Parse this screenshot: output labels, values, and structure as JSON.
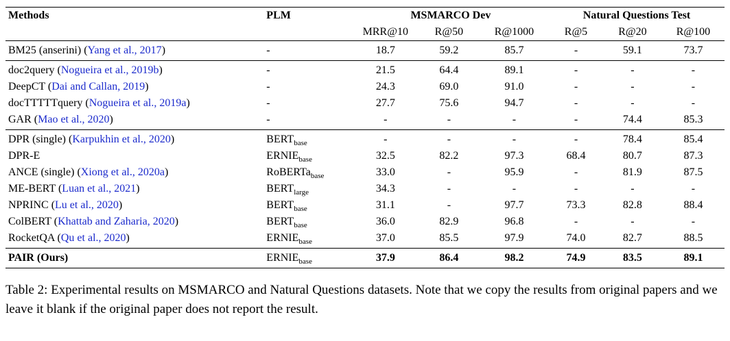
{
  "colors": {
    "citation_link": "#1b2acc",
    "text": "#000000",
    "background": "#ffffff"
  },
  "table": {
    "col_headers": {
      "methods": "Methods",
      "plm": "PLM",
      "group_msmarco": "MSMARCO Dev",
      "group_nq": "Natural Questions Test",
      "sub": [
        "MRR@10",
        "R@50",
        "R@1000",
        "R@5",
        "R@20",
        "R@100"
      ]
    },
    "groups": [
      {
        "rows": [
          {
            "method": "BM25 (anserini)",
            "cite": "Yang et al., 2017",
            "plm": {
              "name": "-",
              "sub": ""
            },
            "values": [
              "18.7",
              "59.2",
              "85.7",
              "-",
              "59.1",
              "73.7"
            ],
            "bold": false
          }
        ]
      },
      {
        "rows": [
          {
            "method": "doc2query",
            "cite": "Nogueira et al., 2019b",
            "plm": {
              "name": "-",
              "sub": ""
            },
            "values": [
              "21.5",
              "64.4",
              "89.1",
              "-",
              "-",
              "-"
            ],
            "bold": false
          },
          {
            "method": "DeepCT",
            "cite": "Dai and Callan, 2019",
            "plm": {
              "name": "-",
              "sub": ""
            },
            "values": [
              "24.3",
              "69.0",
              "91.0",
              "-",
              "-",
              "-"
            ],
            "bold": false
          },
          {
            "method": "docTTTTTquery",
            "cite": "Nogueira et al., 2019a",
            "plm": {
              "name": "-",
              "sub": ""
            },
            "values": [
              "27.7",
              "75.6",
              "94.7",
              "-",
              "-",
              "-"
            ],
            "bold": false
          },
          {
            "method": "GAR",
            "cite": "Mao et al., 2020",
            "plm": {
              "name": "-",
              "sub": ""
            },
            "values": [
              "-",
              "-",
              "-",
              "-",
              "74.4",
              "85.3"
            ],
            "bold": false
          }
        ]
      },
      {
        "rows": [
          {
            "method": "DPR (single)",
            "cite": "Karpukhin et al., 2020",
            "plm": {
              "name": "BERT",
              "sub": "base"
            },
            "values": [
              "-",
              "-",
              "-",
              "-",
              "78.4",
              "85.4"
            ],
            "bold": false
          },
          {
            "method": "DPR-E",
            "cite": "",
            "plm": {
              "name": "ERNIE",
              "sub": "base"
            },
            "values": [
              "32.5",
              "82.2",
              "97.3",
              "68.4",
              "80.7",
              "87.3"
            ],
            "bold": false
          },
          {
            "method": "ANCE (single)",
            "cite": "Xiong et al., 2020a",
            "plm": {
              "name": "RoBERTa",
              "sub": "base"
            },
            "values": [
              "33.0",
              "-",
              "95.9",
              "-",
              "81.9",
              "87.5"
            ],
            "bold": false
          },
          {
            "method": "ME-BERT",
            "cite": "Luan et al., 2021",
            "plm": {
              "name": "BERT",
              "sub": "large"
            },
            "values": [
              "34.3",
              "-",
              "-",
              "-",
              "-",
              "-"
            ],
            "bold": false
          },
          {
            "method": "NPRINC",
            "cite": "Lu et al., 2020",
            "plm": {
              "name": "BERT",
              "sub": "base"
            },
            "values": [
              "31.1",
              "-",
              "97.7",
              "73.3",
              "82.8",
              "88.4"
            ],
            "bold": false
          },
          {
            "method": "ColBERT",
            "cite": "Khattab and Zaharia, 2020",
            "plm": {
              "name": "BERT",
              "sub": "base"
            },
            "values": [
              "36.0",
              "82.9",
              "96.8",
              "-",
              "-",
              "-"
            ],
            "bold": false
          },
          {
            "method": "RocketQA",
            "cite": "Qu et al., 2020",
            "plm": {
              "name": "ERNIE",
              "sub": "base"
            },
            "values": [
              "37.0",
              "85.5",
              "97.9",
              "74.0",
              "82.7",
              "88.5"
            ],
            "bold": false
          }
        ]
      },
      {
        "rows": [
          {
            "method": "PAIR (Ours)",
            "cite": "",
            "plm": {
              "name": "ERNIE",
              "sub": "base"
            },
            "values": [
              "37.9",
              "86.4",
              "98.2",
              "74.9",
              "83.5",
              "89.1"
            ],
            "bold": true
          }
        ]
      }
    ]
  },
  "caption": "Table 2: Experimental results on MSMARCO and Natural Questions datasets. Note that we copy the results from original papers and we leave it blank if the original paper does not report the result."
}
